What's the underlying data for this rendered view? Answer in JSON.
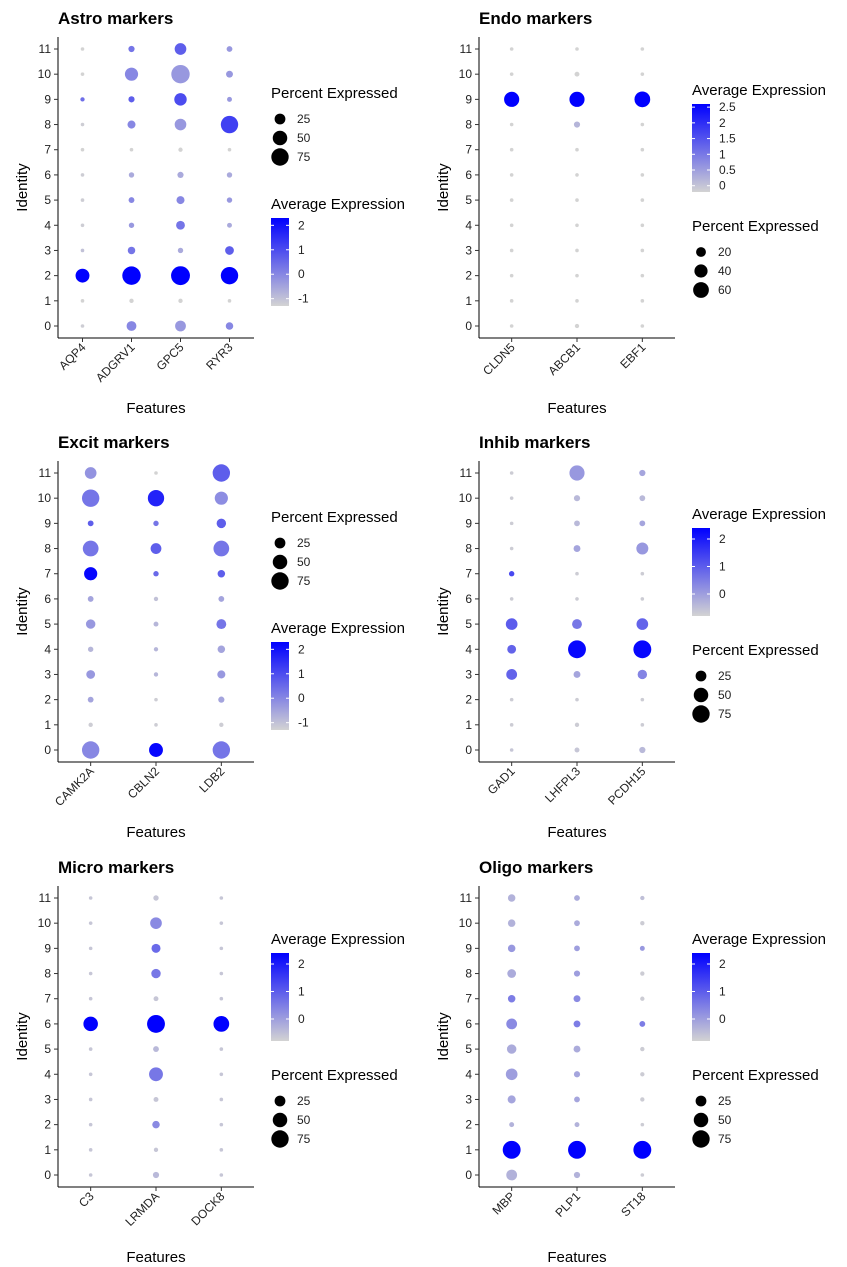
{
  "chart_data": [
    {
      "type": "dotplot",
      "title": "Astro markers",
      "xlabel": "Features",
      "ylabel": "Identity",
      "features": [
        "AQP4",
        "ADGRV1",
        "GPC5",
        "RYR3"
      ],
      "identities": [
        "0",
        "1",
        "2",
        "3",
        "4",
        "5",
        "6",
        "7",
        "8",
        "9",
        "10",
        "11"
      ],
      "percent_expressed": [
        [
          1,
          20,
          25,
          10
        ],
        [
          1,
          2,
          2,
          1
        ],
        [
          45,
          85,
          90,
          75
        ],
        [
          1,
          10,
          4,
          15
        ],
        [
          1,
          4,
          15,
          3
        ],
        [
          1,
          5,
          12,
          4
        ],
        [
          1,
          4,
          6,
          4
        ],
        [
          1,
          1,
          2,
          1
        ],
        [
          1,
          12,
          30,
          75
        ],
        [
          2,
          6,
          35,
          3
        ],
        [
          1,
          40,
          85,
          8
        ],
        [
          1,
          6,
          30,
          5
        ]
      ],
      "average_expression": [
        [
          -1.2,
          0.0,
          -0.3,
          0.0
        ],
        [
          -1.3,
          -1.3,
          -1.3,
          -1.3
        ],
        [
          2.3,
          2.3,
          2.3,
          2.3
        ],
        [
          -1.0,
          0.3,
          -0.6,
          0.7
        ],
        [
          -1.2,
          -0.3,
          0.3,
          -0.6
        ],
        [
          -1.2,
          0.0,
          0.0,
          -0.3
        ],
        [
          -1.2,
          -0.6,
          -0.6,
          -0.6
        ],
        [
          -1.3,
          -1.3,
          -1.3,
          -1.3
        ],
        [
          -1.2,
          0.0,
          -0.3,
          1.2
        ],
        [
          0.4,
          0.7,
          1.0,
          -0.3
        ],
        [
          -1.3,
          0.0,
          -0.3,
          -0.3
        ],
        [
          -1.3,
          0.3,
          0.7,
          -0.3
        ]
      ],
      "legend_first": "size",
      "size_legend": {
        "title": "Percent Expressed",
        "values": [
          25,
          50,
          75
        ]
      },
      "color_legend": {
        "title": "Average Expression",
        "ticks": [
          2,
          1,
          0,
          -1
        ],
        "range": [
          -1.3,
          2.3
        ]
      }
    },
    {
      "type": "dotplot",
      "title": "Endo markers",
      "xlabel": "Features",
      "ylabel": "Identity",
      "features": [
        "CLDN5",
        "ABCB1",
        "EBF1"
      ],
      "identities": [
        "0",
        "1",
        "2",
        "3",
        "4",
        "5",
        "6",
        "7",
        "8",
        "9",
        "10",
        "11"
      ],
      "percent_expressed": [
        [
          1,
          2,
          1
        ],
        [
          1,
          1,
          1
        ],
        [
          1,
          1,
          1
        ],
        [
          1,
          1,
          1
        ],
        [
          1,
          1,
          1
        ],
        [
          1,
          1,
          1
        ],
        [
          1,
          1,
          1
        ],
        [
          1,
          1,
          1
        ],
        [
          1,
          6,
          1
        ],
        [
          55,
          55,
          60
        ],
        [
          1,
          3,
          1
        ],
        [
          1,
          1,
          1
        ]
      ],
      "average_expression": [
        [
          -0.2,
          -0.2,
          -0.2
        ],
        [
          -0.2,
          -0.2,
          -0.2
        ],
        [
          -0.2,
          -0.2,
          -0.2
        ],
        [
          -0.2,
          -0.2,
          -0.2
        ],
        [
          -0.2,
          -0.2,
          -0.2
        ],
        [
          -0.2,
          -0.2,
          -0.2
        ],
        [
          -0.2,
          -0.2,
          -0.2
        ],
        [
          -0.2,
          -0.2,
          -0.2
        ],
        [
          -0.2,
          0.2,
          -0.2
        ],
        [
          2.6,
          2.6,
          2.6
        ],
        [
          -0.2,
          -0.2,
          -0.2
        ],
        [
          -0.2,
          -0.2,
          -0.2
        ]
      ],
      "legend_first": "color",
      "size_legend": {
        "title": "Percent Expressed",
        "values": [
          20,
          40,
          60
        ]
      },
      "color_legend": {
        "title": "Average Expression",
        "ticks": [
          2.5,
          2.0,
          1.5,
          1.0,
          0.5,
          0.0
        ],
        "range": [
          -0.2,
          2.6
        ]
      }
    },
    {
      "type": "dotplot",
      "title": "Excit markers",
      "xlabel": "Features",
      "ylabel": "Identity",
      "features": [
        "CAMK2A",
        "CBLN2",
        "LDB2"
      ],
      "identities": [
        "0",
        "1",
        "2",
        "3",
        "4",
        "5",
        "6",
        "7",
        "8",
        "9",
        "10",
        "11"
      ],
      "percent_expressed": [
        [
          75,
          45,
          75
        ],
        [
          2,
          1,
          2
        ],
        [
          5,
          1,
          6
        ],
        [
          15,
          2,
          12
        ],
        [
          4,
          2,
          10
        ],
        [
          18,
          3,
          20
        ],
        [
          5,
          2,
          5
        ],
        [
          40,
          4,
          10
        ],
        [
          60,
          25,
          60
        ],
        [
          5,
          4,
          18
        ],
        [
          75,
          65,
          40
        ],
        [
          30,
          1,
          75
        ]
      ],
      "average_expression": [
        [
          0.0,
          2.2,
          0.3
        ],
        [
          -1.2,
          -1.2,
          -1.2
        ],
        [
          -0.5,
          -1.2,
          -0.5
        ],
        [
          -0.3,
          -0.8,
          -0.3
        ],
        [
          -0.8,
          -0.8,
          -0.5
        ],
        [
          -0.3,
          -0.8,
          0.3
        ],
        [
          -0.5,
          -1.0,
          -0.5
        ],
        [
          2.2,
          0.5,
          0.7
        ],
        [
          0.3,
          0.7,
          0.3
        ],
        [
          0.7,
          0.3,
          0.7
        ],
        [
          0.3,
          1.7,
          -0.1
        ],
        [
          -0.2,
          -1.3,
          0.7
        ]
      ],
      "legend_first": "size",
      "size_legend": {
        "title": "Percent Expressed",
        "values": [
          25,
          50,
          75
        ]
      },
      "color_legend": {
        "title": "Average Expression",
        "ticks": [
          2,
          1,
          0,
          -1
        ],
        "range": [
          -1.3,
          2.3
        ]
      }
    },
    {
      "type": "dotplot",
      "title": "Inhib markers",
      "xlabel": "Features",
      "ylabel": "Identity",
      "features": [
        "GAD1",
        "LHFPL3",
        "PCDH15"
      ],
      "identities": [
        "0",
        "1",
        "2",
        "3",
        "4",
        "5",
        "6",
        "7",
        "8",
        "9",
        "10",
        "11"
      ],
      "percent_expressed": [
        [
          1,
          3,
          6
        ],
        [
          1,
          2,
          1
        ],
        [
          1,
          1,
          1
        ],
        [
          25,
          8,
          18
        ],
        [
          15,
          80,
          80
        ],
        [
          30,
          20,
          30
        ],
        [
          1,
          1,
          1
        ],
        [
          4,
          1,
          1
        ],
        [
          1,
          8,
          32
        ],
        [
          1,
          5,
          5
        ],
        [
          1,
          6,
          5
        ],
        [
          1,
          55,
          6
        ]
      ],
      "average_expression": [
        [
          -0.6,
          -0.6,
          -0.4
        ],
        [
          -0.7,
          -0.7,
          -0.7
        ],
        [
          -0.7,
          -0.7,
          -0.7
        ],
        [
          0.9,
          -0.1,
          0.4
        ],
        [
          0.9,
          2.3,
          2.3
        ],
        [
          1.0,
          0.6,
          0.9
        ],
        [
          -0.7,
          -0.7,
          -0.7
        ],
        [
          1.3,
          -0.7,
          -0.7
        ],
        [
          -0.7,
          -0.1,
          0.1
        ],
        [
          -0.7,
          -0.4,
          -0.1
        ],
        [
          -0.7,
          -0.4,
          -0.4
        ],
        [
          -0.7,
          0.1,
          -0.1
        ]
      ],
      "legend_first": "color",
      "size_legend": {
        "title": "Percent Expressed",
        "values": [
          25,
          50,
          75
        ]
      },
      "color_legend": {
        "title": "Average Expression",
        "ticks": [
          2,
          1,
          0
        ],
        "range": [
          -0.8,
          2.4
        ]
      }
    },
    {
      "type": "dotplot",
      "title": "Micro markers",
      "xlabel": "Features",
      "ylabel": "Identity",
      "features": [
        "C3",
        "LRMDA",
        "DOCK8"
      ],
      "identities": [
        "0",
        "1",
        "2",
        "3",
        "4",
        "5",
        "6",
        "7",
        "8",
        "9",
        "10",
        "11"
      ],
      "percent_expressed": [
        [
          1,
          6,
          1
        ],
        [
          1,
          2,
          1
        ],
        [
          1,
          10,
          1
        ],
        [
          1,
          3,
          1
        ],
        [
          1,
          45,
          1
        ],
        [
          1,
          5,
          1
        ],
        [
          50,
          80,
          60
        ],
        [
          1,
          3,
          1
        ],
        [
          1,
          18,
          1
        ],
        [
          1,
          16,
          1
        ],
        [
          1,
          30,
          1
        ],
        [
          1,
          4,
          1
        ]
      ],
      "average_expression": [
        [
          -0.6,
          -0.4,
          -0.6
        ],
        [
          -0.6,
          -0.6,
          -0.6
        ],
        [
          -0.6,
          0.3,
          -0.6
        ],
        [
          -0.6,
          -0.6,
          -0.6
        ],
        [
          -0.6,
          0.6,
          -0.6
        ],
        [
          -0.6,
          -0.4,
          -0.6
        ],
        [
          2.5,
          2.5,
          2.5
        ],
        [
          -0.6,
          -0.6,
          -0.6
        ],
        [
          -0.6,
          0.6,
          -0.6
        ],
        [
          -0.6,
          0.8,
          -0.6
        ],
        [
          -0.6,
          0.3,
          -0.6
        ],
        [
          -0.6,
          -0.6,
          -0.6
        ]
      ],
      "legend_first": "color",
      "size_legend": {
        "title": "Percent Expressed",
        "values": [
          25,
          50,
          75
        ]
      },
      "color_legend": {
        "title": "Average Expression",
        "ticks": [
          2,
          1,
          0
        ],
        "range": [
          -0.8,
          2.4
        ]
      }
    },
    {
      "type": "dotplot",
      "title": "Oligo markers",
      "xlabel": "Features",
      "ylabel": "Identity",
      "features": [
        "MBP",
        "PLP1",
        "ST18"
      ],
      "identities": [
        "0",
        "1",
        "2",
        "3",
        "4",
        "5",
        "6",
        "7",
        "8",
        "9",
        "10",
        "11"
      ],
      "percent_expressed": [
        [
          25,
          6,
          1
        ],
        [
          80,
          80,
          80
        ],
        [
          3,
          3,
          1
        ],
        [
          12,
          5,
          2
        ],
        [
          30,
          6,
          2
        ],
        [
          18,
          8,
          2
        ],
        [
          25,
          8,
          5
        ],
        [
          10,
          8,
          2
        ],
        [
          15,
          6,
          2
        ],
        [
          10,
          5,
          3
        ],
        [
          10,
          5,
          2
        ],
        [
          10,
          5,
          2
        ]
      ],
      "average_expression": [
        [
          -0.3,
          -0.3,
          -0.7
        ],
        [
          2.5,
          2.5,
          2.5
        ],
        [
          -0.3,
          -0.3,
          -0.7
        ],
        [
          -0.1,
          -0.1,
          -0.7
        ],
        [
          0.0,
          -0.1,
          -0.7
        ],
        [
          -0.2,
          -0.2,
          -0.7
        ],
        [
          0.3,
          0.5,
          0.5
        ],
        [
          0.5,
          0.3,
          -0.7
        ],
        [
          -0.2,
          0.0,
          -0.7
        ],
        [
          0.1,
          0.0,
          0.1
        ],
        [
          -0.3,
          -0.2,
          -0.7
        ],
        [
          -0.3,
          -0.2,
          -0.5
        ]
      ],
      "legend_first": "color",
      "size_legend": {
        "title": "Percent Expressed",
        "values": [
          25,
          50,
          75
        ]
      },
      "color_legend": {
        "title": "Average Expression",
        "ticks": [
          2,
          1,
          0
        ],
        "range": [
          -0.8,
          2.4
        ]
      }
    }
  ],
  "colors": {
    "low": "#d3d3d3",
    "high": "#0000ff",
    "axis": "#000000",
    "tick_text": "#222222"
  }
}
